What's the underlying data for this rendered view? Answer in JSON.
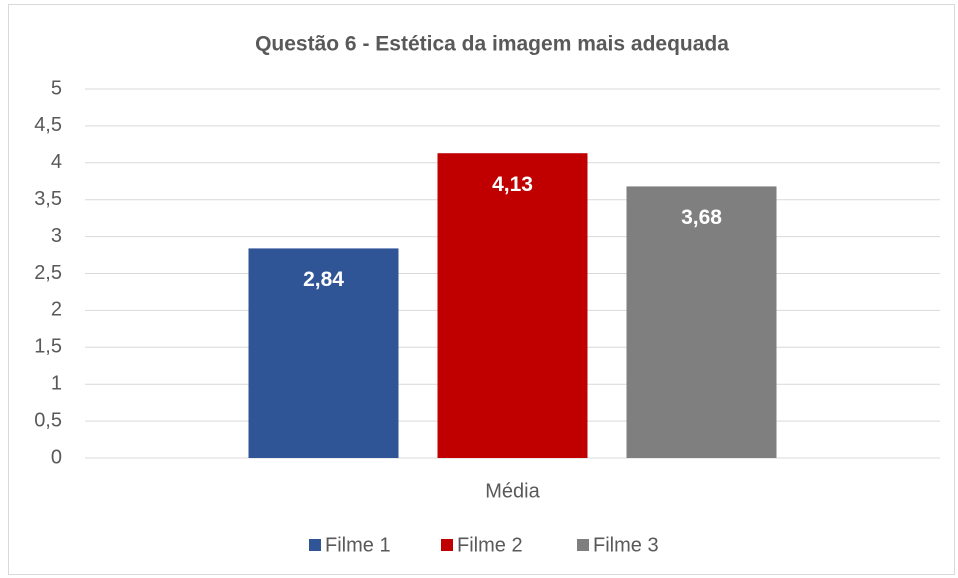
{
  "chart_data": {
    "type": "bar",
    "title": "Questão 6 - Estética da imagem mais adequada",
    "categories": [
      "Média"
    ],
    "series": [
      {
        "name": "Filme 1",
        "color": "#2f5597",
        "values": [
          2.84
        ],
        "value_labels": [
          "2,84"
        ]
      },
      {
        "name": "Filme 2",
        "color": "#c00000",
        "values": [
          4.13
        ],
        "value_labels": [
          "4,13"
        ]
      },
      {
        "name": "Filme 3",
        "color": "#7f7f7f",
        "values": [
          3.68
        ],
        "value_labels": [
          "3,68"
        ]
      }
    ],
    "ylim": [
      0,
      5
    ],
    "yticks": [
      0,
      {
        "value": 0.5,
        "label": "0,5"
      },
      1,
      {
        "value": 1.5,
        "label": "1,5"
      },
      2,
      {
        "value": 2.5,
        "label": "2,5"
      },
      3,
      {
        "value": 3.5,
        "label": "3,5"
      },
      4,
      {
        "value": 4.5,
        "label": "4,5"
      },
      5
    ],
    "grid": true,
    "legend": "bottom"
  }
}
